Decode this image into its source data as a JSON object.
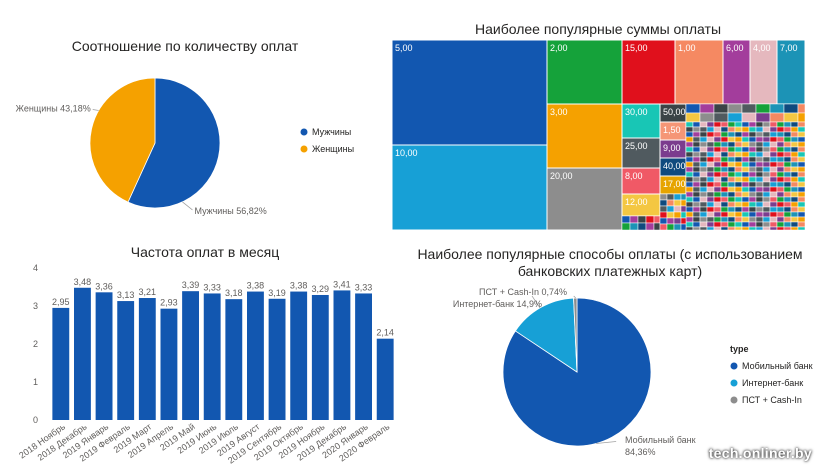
{
  "chart_data": [
    {
      "type": "pie",
      "title": "Соотношение по количеству оплат",
      "slices": [
        {
          "name": "Мужчины",
          "value": 56.82,
          "label": "Мужчины 56,82%",
          "color": "#1257b0"
        },
        {
          "name": "Женщины",
          "value": 43.18,
          "label": "Женщины 43,18%",
          "color": "#f5a100"
        }
      ],
      "legend": [
        "Мужчины",
        "Женщины"
      ],
      "legend_position": "right"
    },
    {
      "type": "treemap",
      "title": "Наиболее популярные суммы оплаты",
      "items": [
        {
          "label": "5,00",
          "color": "#1257b0"
        },
        {
          "label": "10,00",
          "color": "#17a0d6"
        },
        {
          "label": "2,00",
          "color": "#15a23a"
        },
        {
          "label": "3,00",
          "color": "#f5a100"
        },
        {
          "label": "20,00",
          "color": "#8d8d8d"
        },
        {
          "label": "15,00",
          "color": "#e0101c"
        },
        {
          "label": "1,00",
          "color": "#f58962"
        },
        {
          "label": "6,00",
          "color": "#a33d9c"
        },
        {
          "label": "4,00",
          "color": "#e5b8be"
        },
        {
          "label": "7,00",
          "color": "#1c93b6"
        },
        {
          "label": "30,00",
          "color": "#18c6b5"
        },
        {
          "label": "25,00",
          "color": "#505a5f"
        },
        {
          "label": "8,00",
          "color": "#f05966"
        },
        {
          "label": "12,00",
          "color": "#f4c742"
        },
        {
          "label": "50,00",
          "color": "#3a4346"
        },
        {
          "label": "1,50",
          "color": "#f59676"
        },
        {
          "label": "9,00",
          "color": "#7b3c8e"
        },
        {
          "label": "40,00",
          "color": "#0f4a7e"
        },
        {
          "label": "17,00",
          "color": "#e6a400"
        }
      ]
    },
    {
      "type": "bar",
      "title": "Частота оплат в месяц",
      "categories": [
        "2018 Ноябрь",
        "2018 Декабрь",
        "2019 Январь",
        "2019 Февраль",
        "2019 Март",
        "2019 Апрель",
        "2019 Май",
        "2019 Июнь",
        "2019 Июль",
        "2019 Август",
        "2019 Сентябрь",
        "2019 Октябрь",
        "2019 Ноябрь",
        "2019 Декабрь",
        "2020 Январь",
        "2020 Февраль"
      ],
      "values": [
        2.95,
        3.48,
        3.36,
        3.13,
        3.21,
        2.93,
        3.39,
        3.33,
        3.18,
        3.38,
        3.19,
        3.38,
        3.29,
        3.41,
        3.33,
        2.14
      ],
      "value_labels": [
        "2,95",
        "3,48",
        "3,36",
        "3,13",
        "3,21",
        "2,93",
        "3,39",
        "3,33",
        "3,18",
        "3,38",
        "3,19",
        "3,38",
        "3,29",
        "3,41",
        "3,33",
        "2,14"
      ],
      "yticks": [
        "0",
        "1",
        "2",
        "3",
        "4"
      ],
      "ylim": [
        0,
        4
      ],
      "color": "#1257b0"
    },
    {
      "type": "pie",
      "title": "Наиболее популярные способы оплаты (с использованием банковских платежных карт)",
      "legend_title": "type",
      "legend_position": "right",
      "slices": [
        {
          "name": "Мобильный банк",
          "value": 84.36,
          "label_name": "Мобильный банк",
          "label_value": "84,36%",
          "color": "#1257b0"
        },
        {
          "name": "Интернет-банк",
          "value": 14.9,
          "label": "Интернет-банк 14,9%",
          "color": "#17a0d6"
        },
        {
          "name": "ПСТ + Cash-In",
          "value": 0.74,
          "label": "ПСТ + Cash-In 0,74%",
          "color": "#8d8d8d"
        }
      ]
    }
  ],
  "watermark": "tech.onliner.by"
}
